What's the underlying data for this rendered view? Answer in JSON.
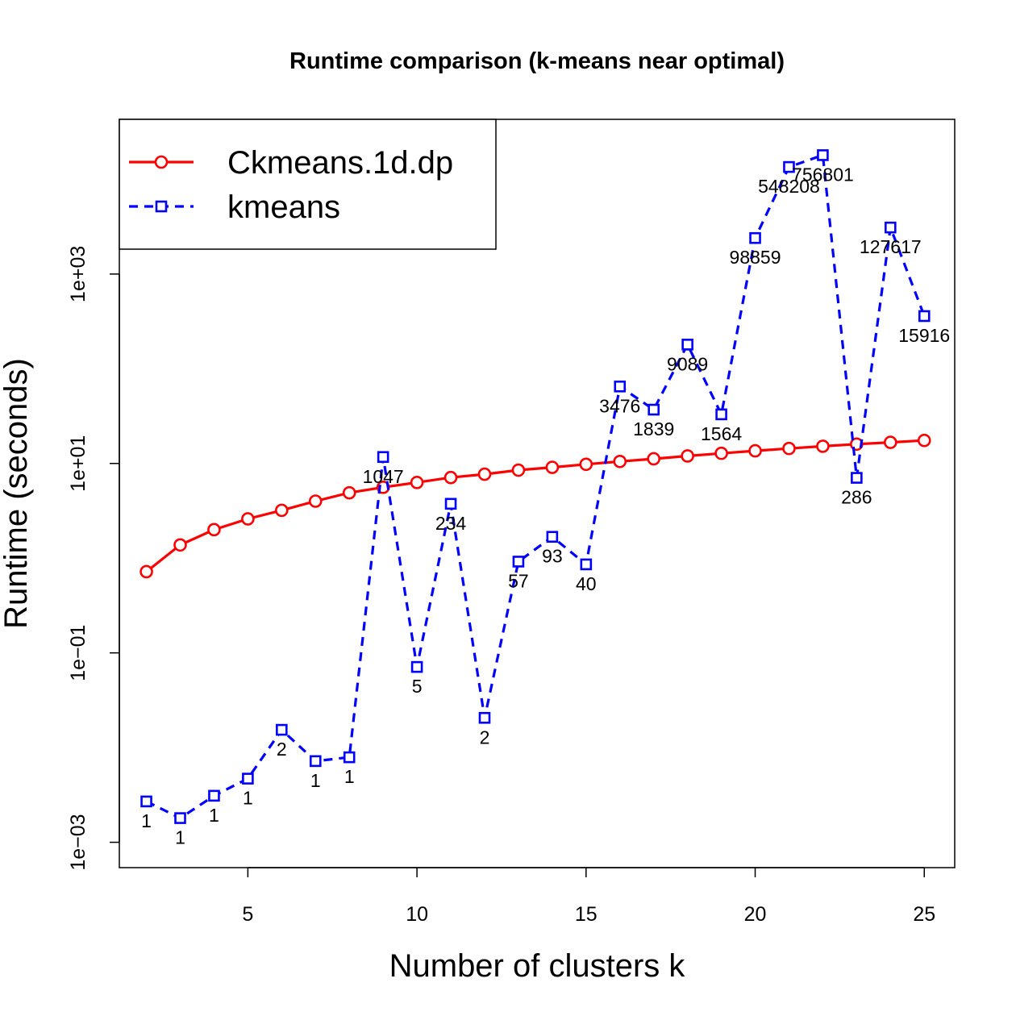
{
  "chart_data": {
    "type": "line",
    "title": "Runtime comparison (k-means near optimal)",
    "xlabel": "Number of clusters k",
    "ylabel": "Runtime (seconds)",
    "x_scale": "linear",
    "y_scale": "log10",
    "xlim": [
      1.2,
      25.9
    ],
    "ylim": [
      0.00054,
      43000
    ],
    "x_ticks": [
      5,
      10,
      15,
      20,
      25
    ],
    "x_tick_labels": [
      "5",
      "10",
      "15",
      "20",
      "25"
    ],
    "y_ticks": [
      0.001,
      0.1,
      10,
      1000
    ],
    "y_tick_labels": [
      "1e−03",
      "1e−01",
      "1e+01",
      "1e+03"
    ],
    "grid": false,
    "legend_position": "top-left",
    "x": [
      2,
      3,
      4,
      5,
      6,
      7,
      8,
      9,
      10,
      11,
      12,
      13,
      14,
      15,
      16,
      17,
      18,
      19,
      20,
      21,
      22,
      23,
      24,
      25
    ],
    "series": [
      {
        "name": "Ckmeans.1d.dp",
        "color": "#ff0000",
        "line_style": "solid",
        "marker": "circle",
        "values": [
          0.72,
          1.38,
          2.0,
          2.6,
          3.2,
          4.0,
          4.9,
          5.6,
          6.3,
          7.1,
          7.7,
          8.5,
          9.1,
          9.8,
          10.5,
          11.2,
          12.0,
          12.8,
          13.6,
          14.4,
          15.2,
          16.0,
          16.7,
          17.5
        ],
        "point_labels": []
      },
      {
        "name": "kmeans",
        "color": "#0000ff",
        "line_style": "dashed",
        "marker": "square",
        "values": [
          0.0027,
          0.0018,
          0.0031,
          0.0047,
          0.0154,
          0.0072,
          0.0079,
          11.7,
          0.071,
          3.75,
          0.0206,
          0.92,
          1.68,
          0.86,
          65,
          37,
          180,
          33,
          2400,
          13500,
          18000,
          7.05,
          3100,
          360
        ],
        "point_labels": [
          "1",
          "1",
          "1",
          "1",
          "2",
          "1",
          "1",
          "1047",
          "5",
          "234",
          "2",
          "57",
          "93",
          "40",
          "3476",
          "1839",
          "9089",
          "1564",
          "98859",
          "548208",
          "756801",
          "286",
          "127617",
          "15916"
        ]
      }
    ]
  }
}
